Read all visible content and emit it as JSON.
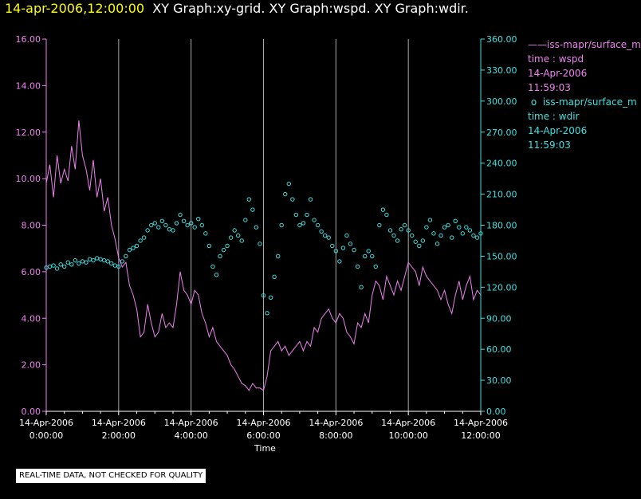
{
  "header": {
    "timestamp": "14-apr-2006,12:00:00",
    "titles": "XY Graph:xy-grid.  XY Graph:wspd.  XY Graph:wdir."
  },
  "colors": {
    "background": "#000000",
    "wspd": "#ee82ee",
    "wdir": "#40e0e0",
    "axis": "#ffffff",
    "grid": "#aaaaaa"
  },
  "legend": [
    {
      "name": "iss-mapr/surface_m",
      "marker": "——",
      "line1": "time : wspd",
      "line2": "14-Apr-2006",
      "line3": "11:59:03"
    },
    {
      "name": "iss-mapr/surface_m",
      "marker": "o",
      "line1": "time : wdir",
      "line2": "14-Apr-2006",
      "line3": "11:59:03"
    }
  ],
  "footer": {
    "notice": "REAL-TIME DATA, NOT CHECKED FOR QUALITY"
  },
  "chart_data": {
    "type": "line",
    "xlabel": "Time",
    "xlim": [
      0,
      12
    ],
    "x_ticks": [
      {
        "value": 0,
        "date": "14-Apr-2006",
        "time": "0:00:00"
      },
      {
        "value": 2,
        "date": "14-Apr-2006",
        "time": "2:00:00"
      },
      {
        "value": 4,
        "date": "14-Apr-2006",
        "time": "4:00:00"
      },
      {
        "value": 6,
        "date": "14-Apr-2006",
        "time": "6:00:00"
      },
      {
        "value": 8,
        "date": "14-Apr-2006",
        "time": "8:00:00"
      },
      {
        "value": 10,
        "date": "14-Apr-2006",
        "time": "10:00:00"
      },
      {
        "value": 12,
        "date": "14-Apr-2006",
        "time": "12:00:00"
      }
    ],
    "y_left": {
      "ylim": [
        0,
        16
      ],
      "ticks": [
        "0.00",
        "2.00",
        "4.00",
        "6.00",
        "8.00",
        "10.00",
        "12.00",
        "14.00",
        "16.00"
      ]
    },
    "y_right": {
      "ylim": [
        0,
        360
      ],
      "ticks": [
        "0.00",
        "30.00",
        "60.00",
        "90.00",
        "120.00",
        "150.00",
        "180.00",
        "210.00",
        "240.00",
        "270.00",
        "300.00",
        "330.00",
        "360.00"
      ]
    },
    "grid": "vertical",
    "series": [
      {
        "name": "iss-mapr/surface_m",
        "yaxis": "left",
        "style": "line",
        "x": [
          0,
          0.1,
          0.2,
          0.3,
          0.4,
          0.5,
          0.6,
          0.7,
          0.8,
          0.9,
          1.0,
          1.1,
          1.2,
          1.3,
          1.4,
          1.5,
          1.6,
          1.7,
          1.8,
          1.9,
          2.0,
          2.1,
          2.2,
          2.3,
          2.4,
          2.5,
          2.6,
          2.7,
          2.8,
          2.9,
          3.0,
          3.1,
          3.2,
          3.3,
          3.4,
          3.5,
          3.6,
          3.7,
          3.8,
          3.9,
          4.0,
          4.1,
          4.2,
          4.3,
          4.4,
          4.5,
          4.6,
          4.7,
          4.8,
          4.9,
          5.0,
          5.1,
          5.2,
          5.3,
          5.4,
          5.5,
          5.6,
          5.7,
          5.8,
          5.9,
          6.0,
          6.1,
          6.2,
          6.3,
          6.4,
          6.5,
          6.6,
          6.7,
          6.8,
          6.9,
          7.0,
          7.1,
          7.2,
          7.3,
          7.4,
          7.5,
          7.6,
          7.7,
          7.8,
          7.9,
          8.0,
          8.1,
          8.2,
          8.3,
          8.4,
          8.5,
          8.6,
          8.7,
          8.8,
          8.9,
          9.0,
          9.1,
          9.2,
          9.3,
          9.4,
          9.5,
          9.6,
          9.7,
          9.8,
          9.9,
          10.0,
          10.1,
          10.2,
          10.3,
          10.4,
          10.5,
          10.6,
          10.7,
          10.8,
          10.9,
          11.0,
          11.1,
          11.2,
          11.3,
          11.4,
          11.5,
          11.6,
          11.7,
          11.8,
          11.9,
          12.0
        ],
        "values": [
          9.8,
          10.6,
          9.2,
          11.0,
          9.8,
          10.4,
          9.9,
          11.4,
          10.4,
          12.5,
          11.0,
          10.4,
          9.5,
          10.8,
          9.2,
          10.0,
          8.6,
          9.2,
          8.0,
          7.4,
          6.6,
          6.2,
          6.4,
          5.4,
          5.0,
          4.4,
          3.2,
          3.4,
          4.6,
          3.8,
          3.2,
          3.4,
          4.2,
          3.6,
          3.8,
          3.6,
          4.6,
          6.0,
          5.2,
          5.0,
          4.6,
          5.2,
          5.0,
          4.2,
          3.8,
          3.2,
          3.6,
          3.0,
          2.8,
          2.6,
          2.4,
          2.0,
          1.8,
          1.5,
          1.2,
          1.1,
          0.9,
          1.2,
          1.0,
          1.0,
          0.9,
          1.5,
          2.6,
          2.8,
          3.0,
          2.6,
          2.8,
          2.4,
          2.6,
          2.8,
          3.0,
          2.6,
          3.0,
          2.8,
          3.6,
          3.4,
          4.0,
          4.2,
          4.4,
          4.0,
          3.8,
          4.2,
          4.0,
          3.4,
          3.2,
          2.9,
          3.8,
          3.6,
          4.2,
          3.8,
          5.0,
          5.6,
          5.4,
          4.8,
          5.8,
          5.4,
          5.0,
          5.6,
          5.2,
          5.8,
          6.4,
          6.2,
          6.0,
          5.4,
          6.2,
          5.8,
          5.6,
          5.4,
          5.2,
          4.8,
          5.2,
          4.6,
          4.2,
          5.0,
          5.6,
          4.8,
          5.4,
          5.8,
          4.8,
          5.2,
          5.0
        ]
      },
      {
        "name": "iss-mapr/surface_m",
        "yaxis": "right",
        "style": "markers",
        "x": [
          0,
          0.1,
          0.2,
          0.3,
          0.4,
          0.5,
          0.6,
          0.7,
          0.8,
          0.9,
          1.0,
          1.1,
          1.2,
          1.3,
          1.4,
          1.5,
          1.6,
          1.7,
          1.8,
          1.9,
          2.0,
          2.1,
          2.2,
          2.3,
          2.4,
          2.5,
          2.6,
          2.7,
          2.8,
          2.9,
          3.0,
          3.1,
          3.2,
          3.3,
          3.4,
          3.5,
          3.6,
          3.7,
          3.8,
          3.9,
          4.0,
          4.1,
          4.2,
          4.3,
          4.4,
          4.5,
          4.6,
          4.7,
          4.8,
          4.9,
          5.0,
          5.1,
          5.2,
          5.3,
          5.4,
          5.5,
          5.6,
          5.7,
          5.8,
          5.9,
          6.0,
          6.1,
          6.2,
          6.3,
          6.4,
          6.5,
          6.6,
          6.7,
          6.8,
          6.9,
          7.0,
          7.1,
          7.2,
          7.3,
          7.4,
          7.5,
          7.6,
          7.7,
          7.8,
          7.9,
          8.0,
          8.1,
          8.2,
          8.3,
          8.4,
          8.5,
          8.6,
          8.7,
          8.8,
          8.9,
          9.0,
          9.1,
          9.2,
          9.3,
          9.4,
          9.5,
          9.6,
          9.7,
          9.8,
          9.9,
          10.0,
          10.1,
          10.2,
          10.3,
          10.4,
          10.5,
          10.6,
          10.7,
          10.8,
          10.9,
          11.0,
          11.1,
          11.2,
          11.3,
          11.4,
          11.5,
          11.6,
          11.7,
          11.8,
          11.9,
          12.0
        ],
        "values": [
          139,
          140,
          141,
          138,
          142,
          140,
          144,
          142,
          146,
          143,
          145,
          144,
          147,
          146,
          148,
          147,
          146,
          145,
          143,
          141,
          140,
          145,
          150,
          156,
          158,
          160,
          165,
          168,
          175,
          180,
          182,
          178,
          184,
          180,
          176,
          175,
          182,
          190,
          184,
          180,
          182,
          178,
          186,
          180,
          172,
          160,
          140,
          132,
          150,
          156,
          160,
          168,
          175,
          170,
          165,
          185,
          205,
          195,
          178,
          162,
          112,
          95,
          110,
          130,
          150,
          180,
          210,
          220,
          205,
          190,
          180,
          182,
          190,
          205,
          185,
          180,
          174,
          170,
          168,
          160,
          155,
          145,
          158,
          170,
          162,
          156,
          140,
          120,
          150,
          155,
          150,
          140,
          180,
          195,
          190,
          175,
          170,
          165,
          176,
          180,
          175,
          170,
          164,
          160,
          165,
          178,
          185,
          172,
          162,
          170,
          178,
          180,
          168,
          184,
          178,
          172,
          178,
          175,
          170,
          168,
          172
        ]
      }
    ]
  }
}
